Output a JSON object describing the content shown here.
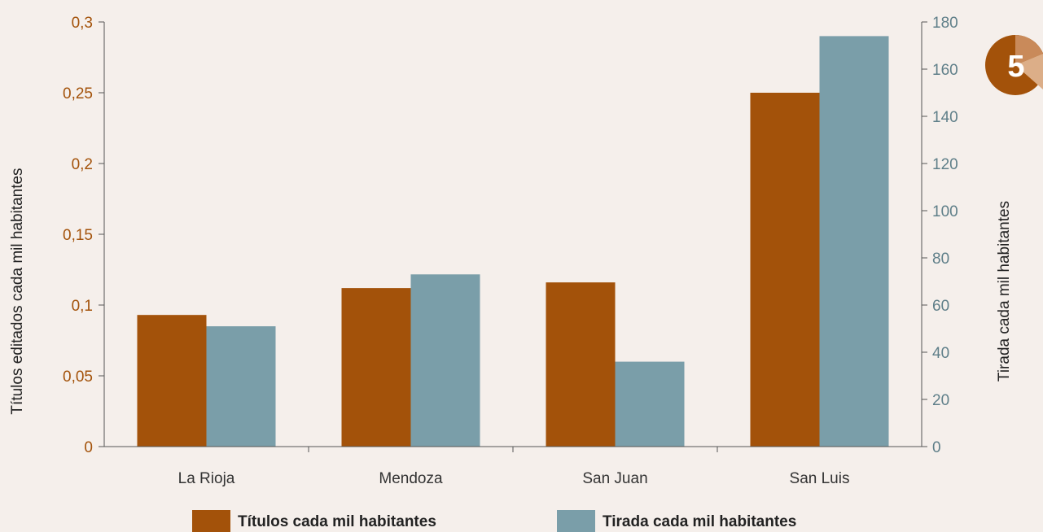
{
  "badge": {
    "number": "5",
    "colors": [
      "#a3520a",
      "#c98a5a",
      "#dcae88"
    ]
  },
  "chart_data": {
    "type": "bar",
    "categories": [
      "La Rioja",
      "Mendoza",
      "San Juan",
      "San Luis"
    ],
    "series": [
      {
        "name": "Títulos cada mil habitantes",
        "axis": "left",
        "color": "#a3520a",
        "values": [
          0.093,
          0.112,
          0.116,
          0.25
        ]
      },
      {
        "name": "Tirada cada mil habitantes",
        "axis": "right",
        "color": "#7a9ea9",
        "values": [
          51,
          73,
          36,
          174
        ]
      }
    ],
    "ylabel": "Títulos editados cada mil habitantes",
    "y2label": "Tirada cada mil habitantes",
    "ylim": [
      0,
      0.3
    ],
    "y2lim": [
      0,
      180
    ],
    "yticks": [
      "0",
      "0,05",
      "0,1",
      "0,15",
      "0,2",
      "0,25",
      "0,3"
    ],
    "yticks_values": [
      0,
      0.05,
      0.1,
      0.15,
      0.2,
      0.25,
      0.3
    ],
    "y2ticks": [
      "0",
      "20",
      "40",
      "60",
      "80",
      "100",
      "120",
      "140",
      "160",
      "180"
    ],
    "y2ticks_values": [
      0,
      20,
      40,
      60,
      80,
      100,
      120,
      140,
      160,
      180
    ],
    "grid": false,
    "legend_position": "bottom",
    "colors": {
      "left_axis": "#a3520a",
      "right_axis": "#5f7f89",
      "axis_line": "#555555"
    }
  }
}
